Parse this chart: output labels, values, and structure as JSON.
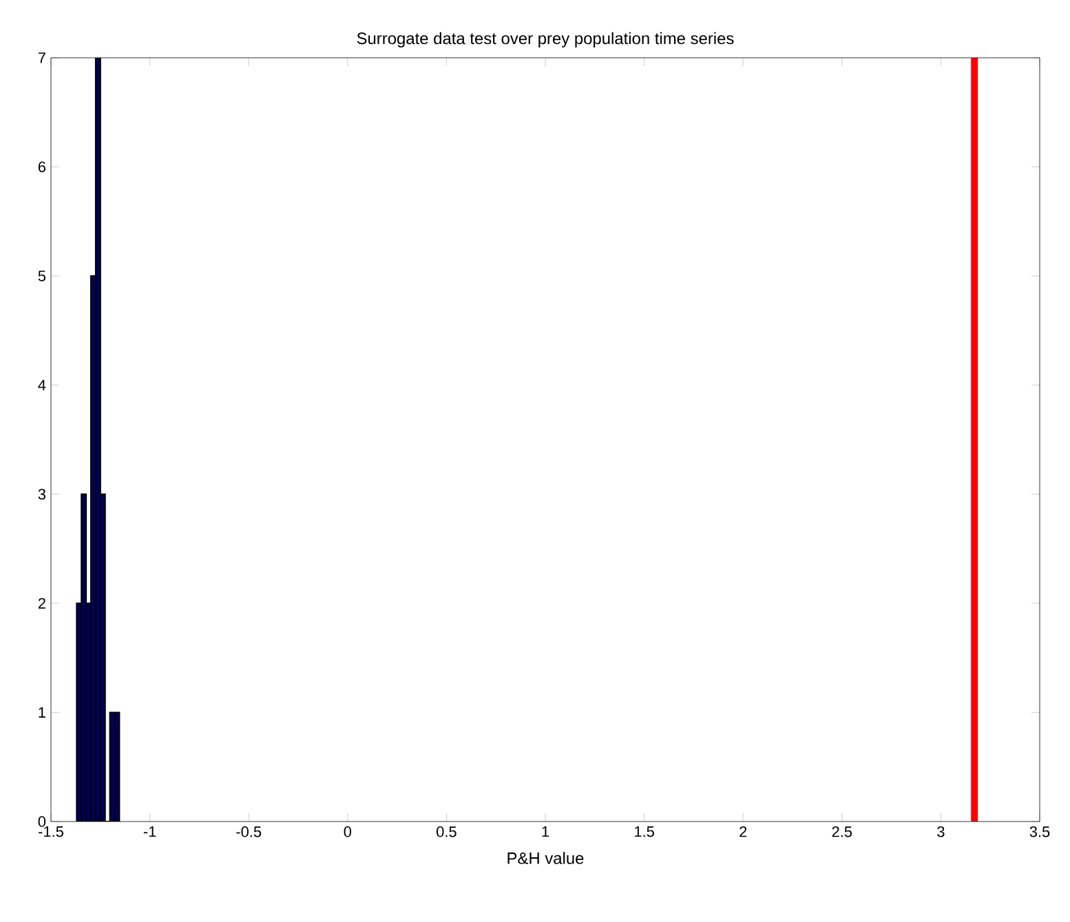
{
  "chart_data": {
    "type": "histogram",
    "title": "Surrogate data test over prey population time series",
    "xlabel": "P&H value",
    "bins": [
      -1.37,
      -1.346,
      -1.322,
      -1.298,
      -1.274,
      -1.25,
      -1.226,
      -1.202,
      -1.178,
      -1.154
    ],
    "values": [
      2,
      3,
      2,
      5,
      7,
      3,
      0,
      1,
      1
    ],
    "color": "#00005a",
    "xlim": [
      -1.5,
      3.5
    ],
    "xticks": [
      -1.5,
      -1,
      -0.5,
      0,
      0.5,
      1,
      1.5,
      2,
      2.5,
      3,
      3.5
    ],
    "ylim": [
      0,
      7
    ],
    "yticks": [
      0,
      1,
      2,
      3,
      4,
      5,
      6,
      7
    ],
    "ref_lines": [
      {
        "axis": "x",
        "value": 3.17,
        "color": "#ff0000"
      }
    ]
  }
}
